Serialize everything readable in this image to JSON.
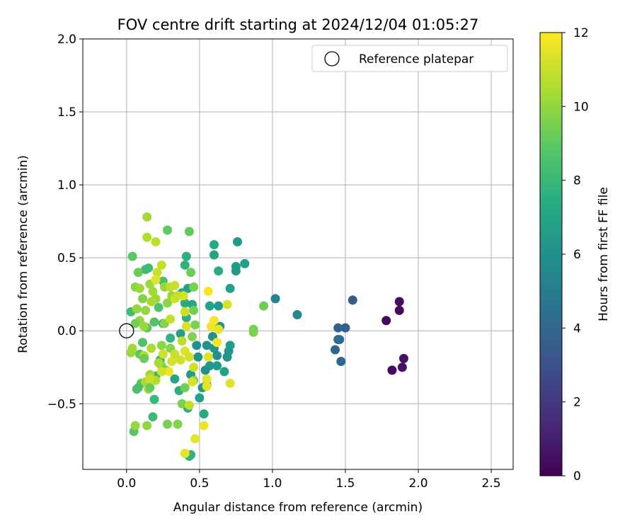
{
  "chart_data": {
    "type": "scatter",
    "title": "FOV centre drift starting at 2024/12/04 01:05:27",
    "xlabel": "Angular distance from reference (arcmin)",
    "ylabel": "Rotation from reference (arcmin)",
    "xlim": [
      -0.3,
      2.65
    ],
    "ylim": [
      -0.95,
      2.0
    ],
    "xticks": [
      0.0,
      0.5,
      1.0,
      1.5,
      2.0,
      2.5
    ],
    "xtick_labels": [
      "0.0",
      "0.5",
      "1.0",
      "1.5",
      "2.0",
      "2.5"
    ],
    "yticks": [
      -0.5,
      0.0,
      0.5,
      1.0,
      1.5,
      2.0
    ],
    "ytick_labels": [
      "−0.5",
      "0.0",
      "0.5",
      "1.0",
      "1.5",
      "2.0"
    ],
    "grid": true,
    "legend": {
      "placement": "top-right",
      "entries": [
        "Reference platepar"
      ]
    },
    "reference_point": {
      "x": 0.0,
      "y": 0.0,
      "label": "Reference platepar"
    },
    "colorbar": {
      "label": "Hours from first FF file",
      "range": [
        0,
        12
      ],
      "ticks": [
        0,
        2,
        4,
        6,
        8,
        10,
        12
      ],
      "tick_labels": [
        "0",
        "2",
        "4",
        "6",
        "8",
        "10",
        "12"
      ],
      "colormap": "viridis"
    },
    "points": [
      [
        1.78,
        0.07,
        0.2
      ],
      [
        1.87,
        0.2,
        0.4
      ],
      [
        1.87,
        0.14,
        0.3
      ],
      [
        1.82,
        -0.27,
        0.3
      ],
      [
        1.9,
        -0.19,
        0.5
      ],
      [
        1.89,
        -0.25,
        0.6
      ],
      [
        1.55,
        0.21,
        3.5
      ],
      [
        1.45,
        0.02,
        3.8
      ],
      [
        1.5,
        0.02,
        3.6
      ],
      [
        1.43,
        -0.13,
        3.9
      ],
      [
        1.45,
        -0.06,
        4.0
      ],
      [
        1.46,
        -0.06,
        4.1
      ],
      [
        1.47,
        -0.21,
        3.9
      ],
      [
        1.02,
        0.22,
        5.3
      ],
      [
        1.17,
        0.11,
        5.5
      ],
      [
        0.76,
        0.61,
        6.5
      ],
      [
        0.81,
        0.46,
        6.7
      ],
      [
        0.75,
        0.44,
        6.6
      ],
      [
        0.75,
        0.41,
        6.4
      ],
      [
        0.71,
        0.29,
        6.8
      ],
      [
        0.6,
        0.59,
        7.2
      ],
      [
        0.6,
        0.52,
        7.0
      ],
      [
        0.63,
        0.41,
        7.4
      ],
      [
        0.57,
        0.17,
        6.9
      ],
      [
        0.63,
        0.17,
        6.5
      ],
      [
        0.64,
        0.03,
        6.2
      ],
      [
        0.59,
        -0.04,
        6.0
      ],
      [
        0.6,
        -0.12,
        6.3
      ],
      [
        0.57,
        -0.24,
        6.4
      ],
      [
        0.62,
        -0.17,
        6.1
      ],
      [
        0.62,
        -0.24,
        6.6
      ],
      [
        0.71,
        -0.1,
        6.7
      ],
      [
        0.7,
        -0.14,
        6.4
      ],
      [
        0.69,
        -0.18,
        6.2
      ],
      [
        0.67,
        -0.28,
        6.9
      ],
      [
        0.55,
        -0.1,
        6.1
      ],
      [
        0.54,
        -0.27,
        6.0
      ],
      [
        0.55,
        -0.37,
        6.3
      ],
      [
        0.52,
        -0.39,
        6.5
      ],
      [
        0.5,
        -0.46,
        6.8
      ],
      [
        0.53,
        -0.57,
        7.3
      ],
      [
        0.49,
        -0.18,
        6.2
      ],
      [
        0.48,
        -0.1,
        6.0
      ],
      [
        0.44,
        -0.3,
        6.6
      ],
      [
        0.42,
        -0.53,
        7.5
      ],
      [
        0.44,
        -0.85,
        7.8
      ],
      [
        0.43,
        -0.86,
        7.9
      ],
      [
        0.41,
        0.51,
        7.6
      ],
      [
        0.4,
        0.45,
        7.7
      ],
      [
        0.42,
        0.29,
        7.0
      ],
      [
        0.38,
        0.26,
        7.2
      ],
      [
        0.4,
        0.19,
        7.4
      ],
      [
        0.45,
        0.18,
        7.1
      ],
      [
        0.41,
        0.09,
        7.5
      ],
      [
        0.37,
        -0.02,
        6.9
      ],
      [
        0.33,
        -0.33,
        7.0
      ],
      [
        0.36,
        -0.41,
        7.6
      ],
      [
        0.3,
        -0.05,
        7.8
      ],
      [
        0.25,
        0.05,
        7.7
      ],
      [
        0.23,
        -0.2,
        7.8
      ],
      [
        0.2,
        -0.31,
        8.0
      ],
      [
        0.18,
        -0.59,
        8.2
      ],
      [
        0.19,
        -0.47,
        8.1
      ],
      [
        0.15,
        0.43,
        8.3
      ],
      [
        0.13,
        0.42,
        8.2
      ],
      [
        0.2,
        0.35,
        8.4
      ],
      [
        0.25,
        0.34,
        8.5
      ],
      [
        0.22,
        0.16,
        8.6
      ],
      [
        0.19,
        0.06,
        8.7
      ],
      [
        0.14,
        0.02,
        8.8
      ],
      [
        0.11,
        -0.08,
        8.6
      ],
      [
        0.09,
        -0.16,
        8.9
      ],
      [
        0.1,
        -0.36,
        8.7
      ],
      [
        0.08,
        -0.39,
        8.4
      ],
      [
        0.07,
        -0.4,
        8.5
      ],
      [
        0.05,
        -0.69,
        8.8
      ],
      [
        0.03,
        0.13,
        8.3
      ],
      [
        0.04,
        0.51,
        8.9
      ],
      [
        0.08,
        0.4,
        9.2
      ],
      [
        0.28,
        0.69,
        9.0
      ],
      [
        0.43,
        0.68,
        9.1
      ],
      [
        0.44,
        0.4,
        9.3
      ],
      [
        0.46,
        0.3,
        9.5
      ],
      [
        0.46,
        0.14,
        9.4
      ],
      [
        0.47,
        0.04,
        9.6
      ],
      [
        0.45,
        -0.04,
        9.7
      ],
      [
        0.46,
        -0.34,
        9.5
      ],
      [
        0.4,
        -0.39,
        9.4
      ],
      [
        0.38,
        -0.5,
        9.6
      ],
      [
        0.35,
        -0.64,
        9.7
      ],
      [
        0.28,
        -0.64,
        9.5
      ],
      [
        0.3,
        -0.12,
        9.8
      ],
      [
        0.27,
        -0.27,
        9.7
      ],
      [
        0.24,
        -0.24,
        9.6
      ],
      [
        0.24,
        -0.1,
        9.9
      ],
      [
        0.26,
        0.05,
        9.8
      ],
      [
        0.28,
        0.19,
        9.9
      ],
      [
        0.31,
        0.24,
        10.0
      ],
      [
        0.26,
        0.3,
        10.1
      ],
      [
        0.2,
        0.22,
        10.2
      ],
      [
        0.18,
        0.27,
        10.3
      ],
      [
        0.17,
        0.2,
        10.4
      ],
      [
        0.16,
        0.32,
        10.2
      ],
      [
        0.13,
        0.14,
        10.0
      ],
      [
        0.12,
        0.03,
        10.1
      ],
      [
        0.09,
        0.07,
        10.2
      ],
      [
        0.07,
        0.15,
        10.0
      ],
      [
        0.06,
        0.3,
        9.9
      ],
      [
        0.04,
        -0.12,
        10.3
      ],
      [
        0.03,
        -0.15,
        10.2
      ],
      [
        0.06,
        -0.65,
        10.1
      ],
      [
        0.14,
        -0.65,
        10.0
      ],
      [
        0.15,
        -0.4,
        10.4
      ],
      [
        0.13,
        -0.35,
        10.5
      ],
      [
        0.16,
        -0.3,
        10.3
      ],
      [
        0.2,
        -0.34,
        10.6
      ],
      [
        0.22,
        -0.22,
        10.4
      ],
      [
        0.17,
        -0.12,
        10.5
      ],
      [
        0.12,
        -0.17,
        10.7
      ],
      [
        0.94,
        0.17,
        9.3
      ],
      [
        0.87,
        0.01,
        9.5
      ],
      [
        0.87,
        -0.01,
        9.6
      ],
      [
        0.14,
        0.78,
        10.3
      ],
      [
        0.14,
        0.64,
        10.6
      ],
      [
        0.2,
        0.61,
        10.8
      ],
      [
        0.24,
        0.45,
        10.9
      ],
      [
        0.21,
        0.4,
        11.0
      ],
      [
        0.3,
        0.3,
        10.8
      ],
      [
        0.33,
        0.31,
        11.0
      ],
      [
        0.33,
        0.22,
        11.1
      ],
      [
        0.35,
        0.24,
        10.9
      ],
      [
        0.39,
        0.24,
        11.2
      ],
      [
        0.4,
        0.13,
        11.0
      ],
      [
        0.41,
        0.03,
        11.3
      ],
      [
        0.38,
        -0.07,
        10.8
      ],
      [
        0.33,
        -0.16,
        11.0
      ],
      [
        0.31,
        -0.21,
        11.2
      ],
      [
        0.37,
        -0.2,
        11.1
      ],
      [
        0.4,
        -0.14,
        11.4
      ],
      [
        0.43,
        -0.18,
        11.2
      ],
      [
        0.46,
        -0.25,
        11.1
      ],
      [
        0.45,
        -0.35,
        11.3
      ],
      [
        0.43,
        -0.51,
        10.9
      ],
      [
        0.47,
        -0.74,
        11.5
      ],
      [
        0.4,
        -0.84,
        11.6
      ],
      [
        0.53,
        -0.65,
        11.7
      ],
      [
        0.55,
        -0.33,
        11.5
      ],
      [
        0.55,
        -0.38,
        11.6
      ],
      [
        0.56,
        -0.18,
        11.4
      ],
      [
        0.58,
        0.03,
        11.7
      ],
      [
        0.6,
        0.07,
        11.8
      ],
      [
        0.63,
        0.01,
        11.6
      ],
      [
        0.62,
        -0.08,
        11.9
      ],
      [
        0.56,
        0.27,
        11.8
      ],
      [
        0.69,
        0.18,
        11.3
      ],
      [
        0.71,
        -0.36,
        11.4
      ],
      [
        0.29,
        -0.28,
        11.7
      ],
      [
        0.24,
        -0.28,
        11.2
      ],
      [
        0.16,
        -0.33,
        11.0
      ],
      [
        0.25,
        -0.16,
        11.1
      ],
      [
        0.2,
        0.35,
        11.4
      ],
      [
        0.3,
        0.08,
        10.9
      ],
      [
        0.09,
        0.29,
        10.2
      ],
      [
        0.11,
        0.22,
        9.7
      ],
      [
        0.06,
        0.05,
        9.4
      ],
      [
        0.12,
        -0.19,
        9.2
      ],
      [
        0.16,
        -0.39,
        9.1
      ]
    ]
  }
}
